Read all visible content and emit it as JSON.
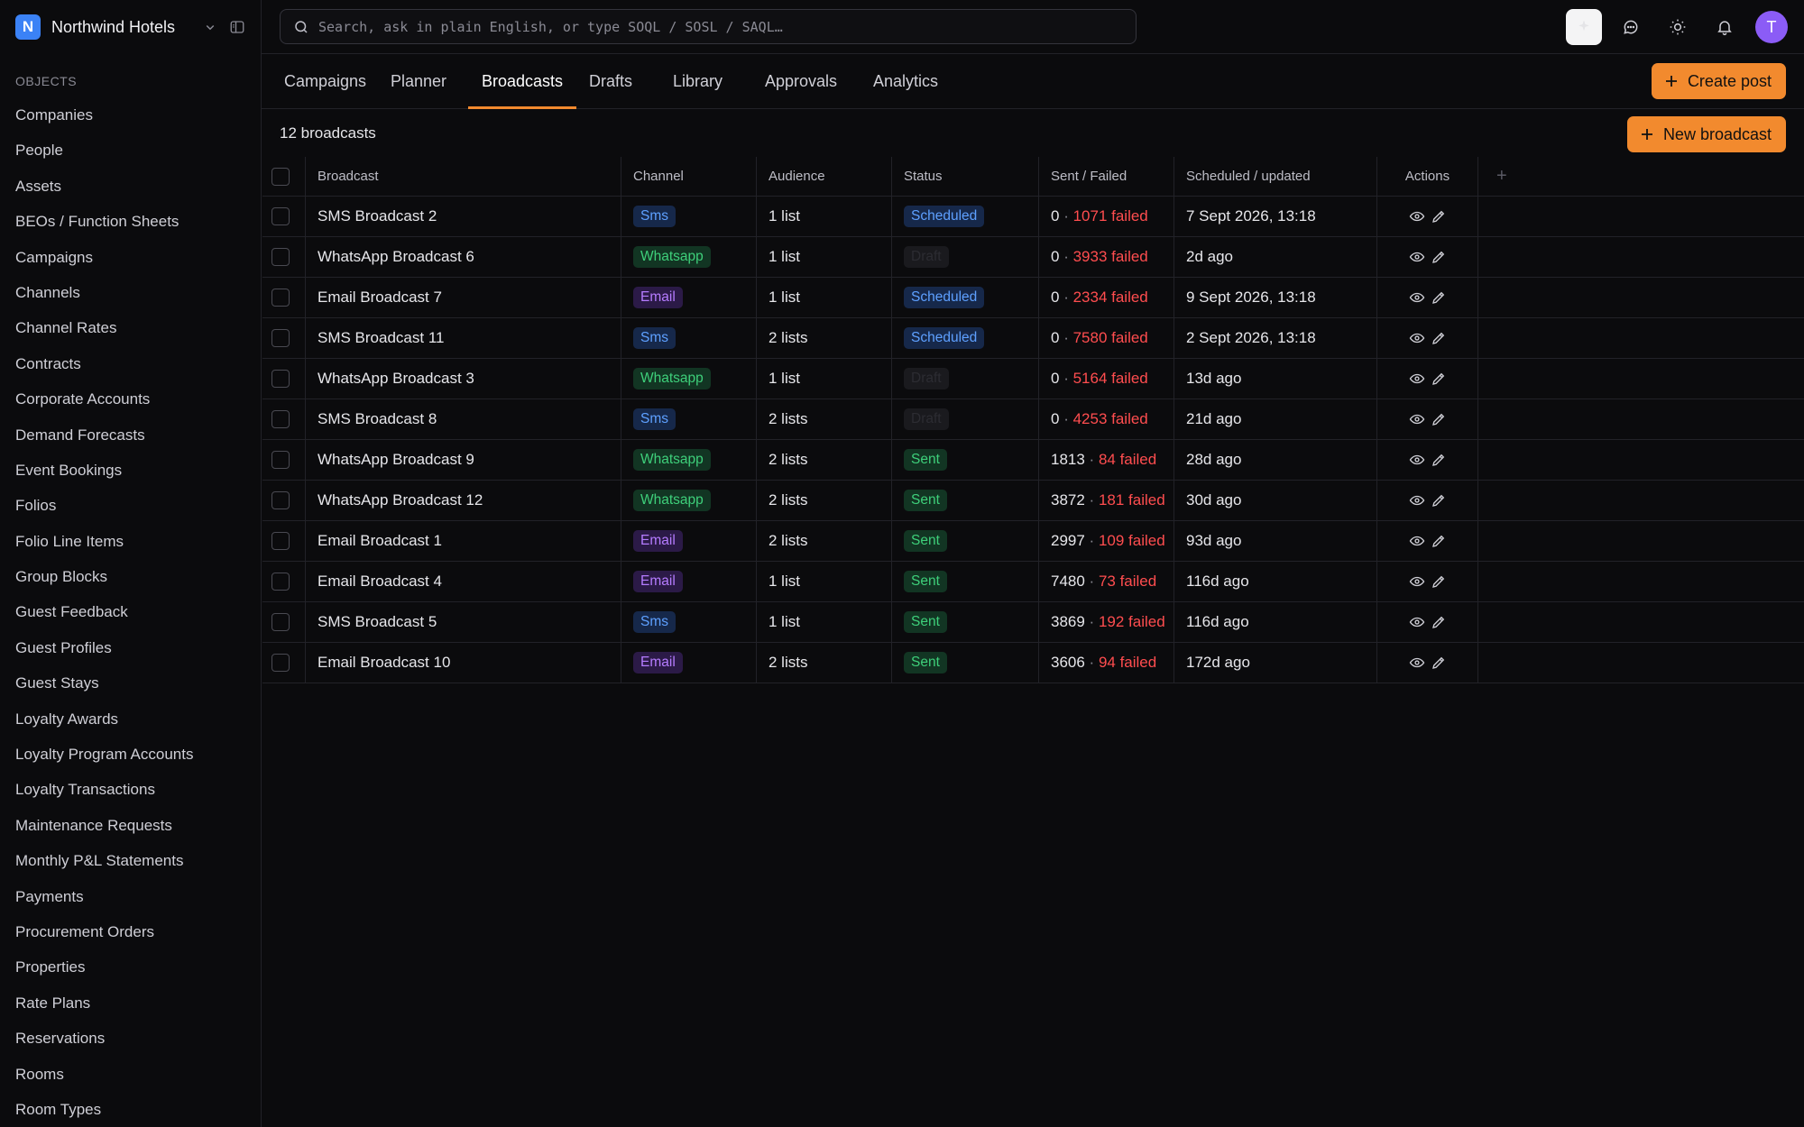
{
  "brand": {
    "logo_letter": "N",
    "name": "Northwind Hotels"
  },
  "sidebar": {
    "section_label": "OBJECTS",
    "items": [
      "Companies",
      "People",
      "Assets",
      "BEOs / Function Sheets",
      "Campaigns",
      "Channels",
      "Channel Rates",
      "Contracts",
      "Corporate Accounts",
      "Demand Forecasts",
      "Event Bookings",
      "Folios",
      "Folio Line Items",
      "Group Blocks",
      "Guest Feedback",
      "Guest Profiles",
      "Guest Stays",
      "Loyalty Awards",
      "Loyalty Program Accounts",
      "Loyalty Transactions",
      "Maintenance Requests",
      "Monthly P&L Statements",
      "Payments",
      "Procurement Orders",
      "Properties",
      "Rate Plans",
      "Reservations",
      "Rooms",
      "Room Types"
    ]
  },
  "search": {
    "placeholder": "Search, ask in plain English, or type SOQL / SOSL / SAQL…"
  },
  "user": {
    "initial": "T"
  },
  "tabs": [
    "Campaigns",
    "Planner",
    "Broadcasts",
    "Drafts",
    "Library",
    "Approvals",
    "Analytics"
  ],
  "active_tab": "Broadcasts",
  "buttons": {
    "create_post": "Create post",
    "new_broadcast": "New broadcast"
  },
  "count_label": "12 broadcasts",
  "table": {
    "columns": {
      "broadcast": "Broadcast",
      "channel": "Channel",
      "audience": "Audience",
      "status": "Status",
      "sent_failed": "Sent / Failed",
      "scheduled": "Scheduled / updated",
      "actions": "Actions",
      "add": "+"
    },
    "rows": [
      {
        "name": "SMS Broadcast 2",
        "channel": "Sms",
        "audience": "1 list",
        "status": "Scheduled",
        "sent": "0",
        "failed": "1071 failed",
        "scheduled": "7 Sept 2026, 13:18"
      },
      {
        "name": "WhatsApp Broadcast 6",
        "channel": "Whatsapp",
        "audience": "1 list",
        "status": "Draft",
        "sent": "0",
        "failed": "3933 failed",
        "scheduled": "2d ago"
      },
      {
        "name": "Email Broadcast 7",
        "channel": "Email",
        "audience": "1 list",
        "status": "Scheduled",
        "sent": "0",
        "failed": "2334 failed",
        "scheduled": "9 Sept 2026, 13:18"
      },
      {
        "name": "SMS Broadcast 11",
        "channel": "Sms",
        "audience": "2 lists",
        "status": "Scheduled",
        "sent": "0",
        "failed": "7580 failed",
        "scheduled": "2 Sept 2026, 13:18"
      },
      {
        "name": "WhatsApp Broadcast 3",
        "channel": "Whatsapp",
        "audience": "1 list",
        "status": "Draft",
        "sent": "0",
        "failed": "5164 failed",
        "scheduled": "13d ago"
      },
      {
        "name": "SMS Broadcast 8",
        "channel": "Sms",
        "audience": "2 lists",
        "status": "Draft",
        "sent": "0",
        "failed": "4253 failed",
        "scheduled": "21d ago"
      },
      {
        "name": "WhatsApp Broadcast 9",
        "channel": "Whatsapp",
        "audience": "2 lists",
        "status": "Sent",
        "sent": "1813",
        "failed": "84 failed",
        "scheduled": "28d ago"
      },
      {
        "name": "WhatsApp Broadcast 12",
        "channel": "Whatsapp",
        "audience": "2 lists",
        "status": "Sent",
        "sent": "3872",
        "failed": "181 failed",
        "scheduled": "30d ago"
      },
      {
        "name": "Email Broadcast 1",
        "channel": "Email",
        "audience": "2 lists",
        "status": "Sent",
        "sent": "2997",
        "failed": "109 failed",
        "scheduled": "93d ago"
      },
      {
        "name": "Email Broadcast 4",
        "channel": "Email",
        "audience": "1 list",
        "status": "Sent",
        "sent": "7480",
        "failed": "73 failed",
        "scheduled": "116d ago"
      },
      {
        "name": "SMS Broadcast 5",
        "channel": "Sms",
        "audience": "1 list",
        "status": "Sent",
        "sent": "3869",
        "failed": "192 failed",
        "scheduled": "116d ago"
      },
      {
        "name": "Email Broadcast 10",
        "channel": "Email",
        "audience": "2 lists",
        "status": "Sent",
        "sent": "3606",
        "failed": "94 failed",
        "scheduled": "172d ago"
      }
    ]
  },
  "colors": {
    "accent": "#f28a2e",
    "background": "#0b0b0d",
    "failed": "#ff4d4f"
  },
  "icons": [
    "search-icon",
    "chevron-down-icon",
    "panel-toggle-icon",
    "sparkle-icon",
    "chat-icon",
    "sun-icon",
    "bell-icon",
    "plus-icon",
    "eye-icon",
    "pencil-icon"
  ]
}
